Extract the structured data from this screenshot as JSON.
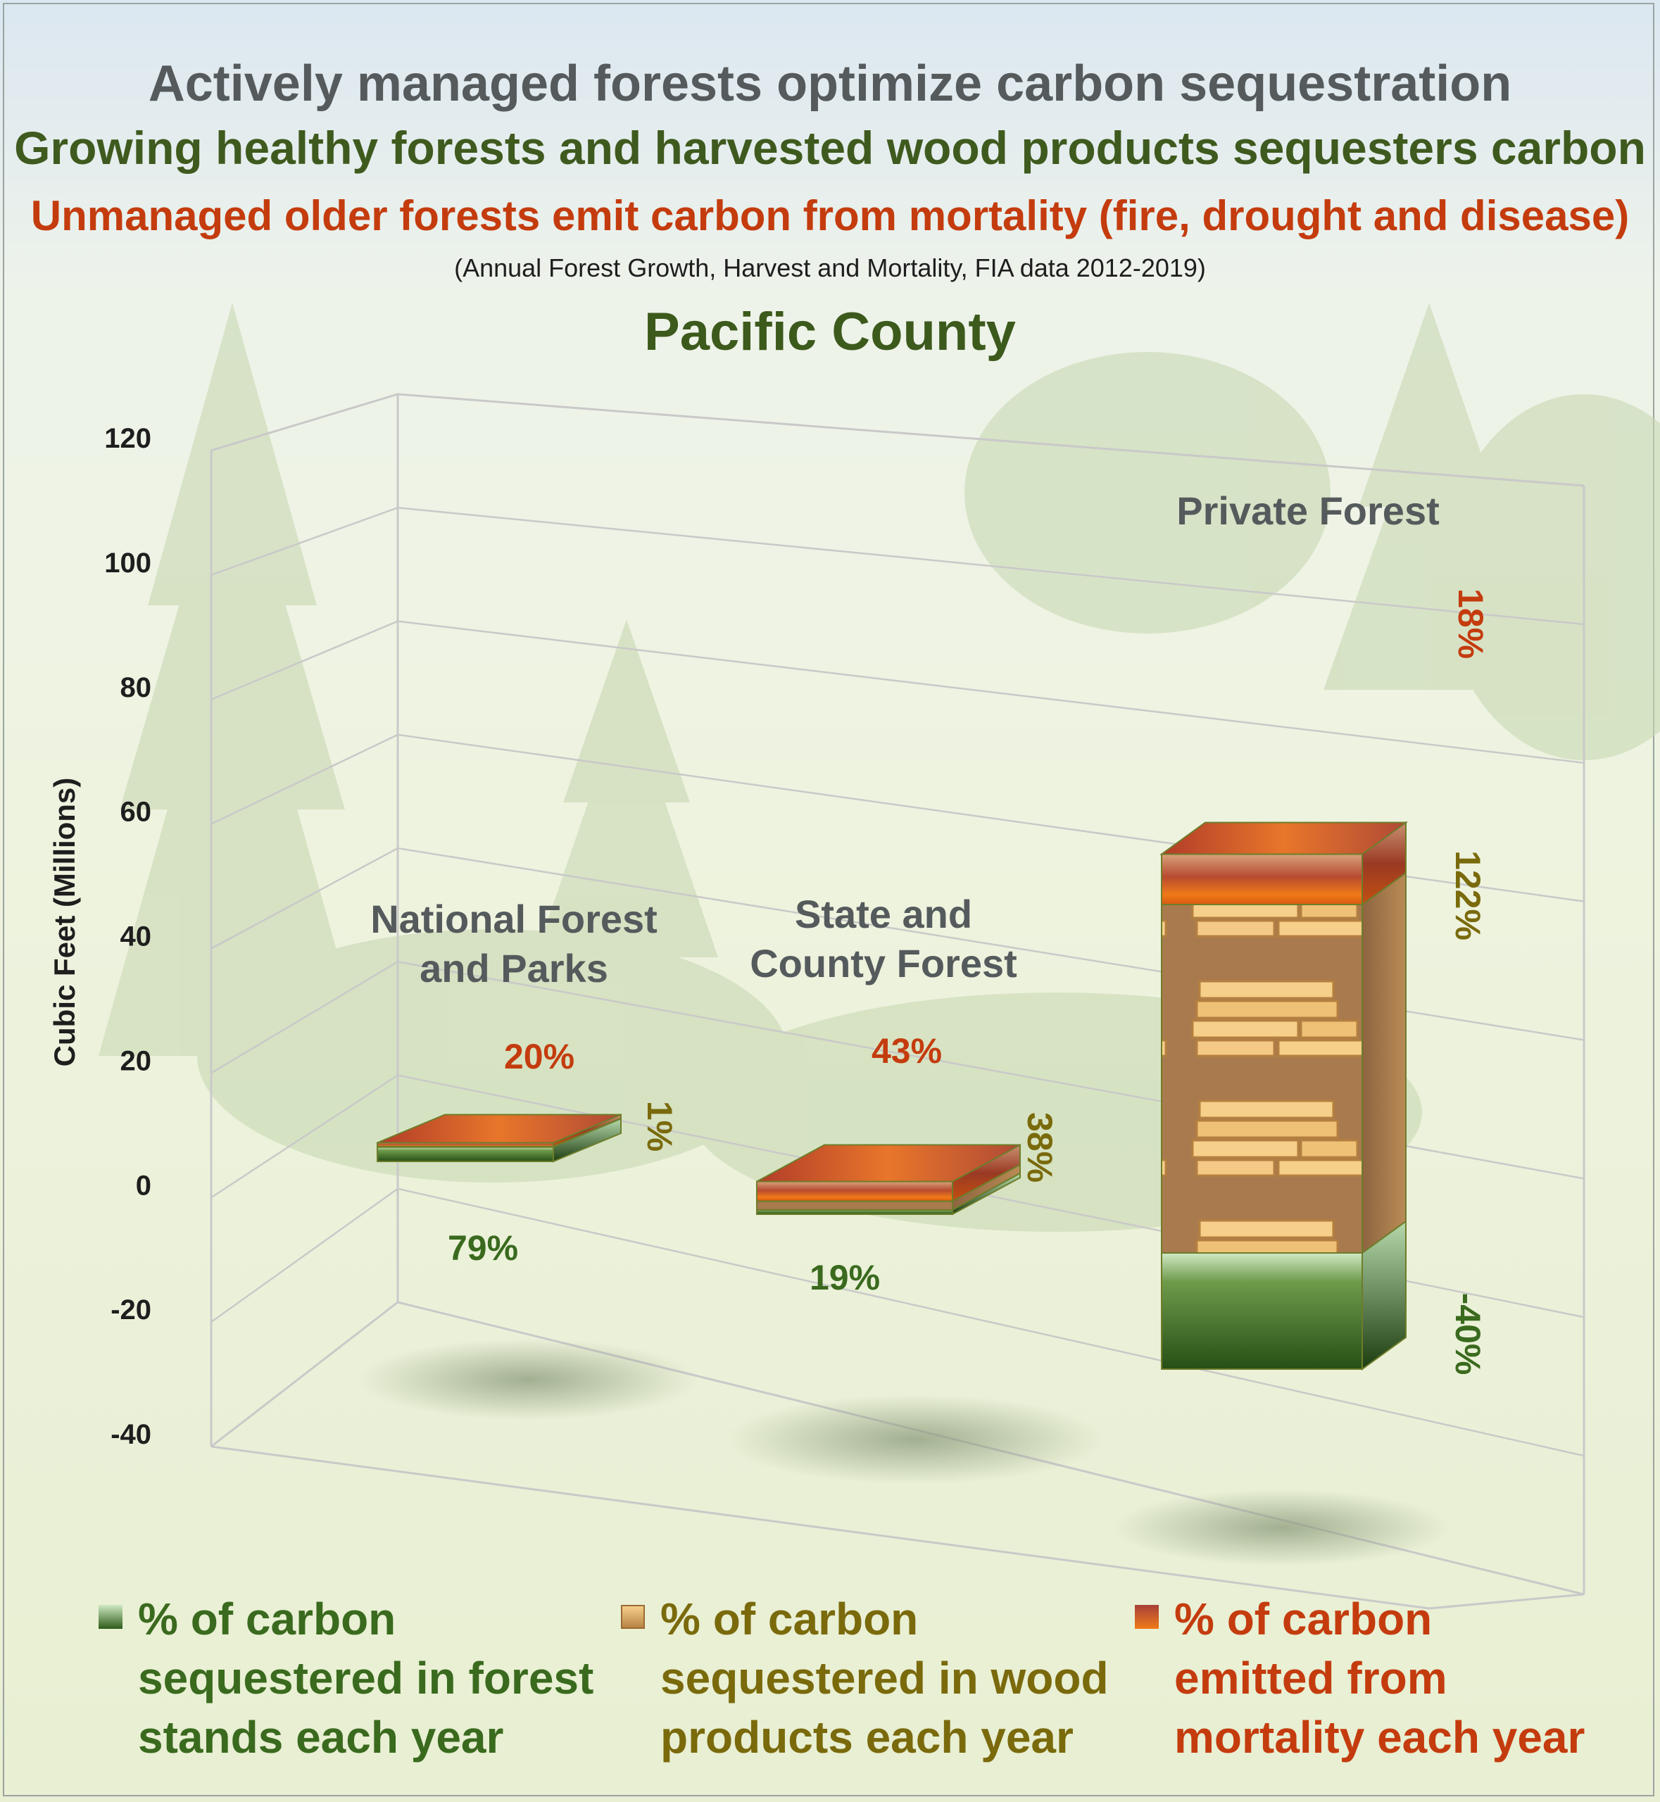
{
  "titles": {
    "main": "Actively managed forests optimize carbon sequestration",
    "line2": "Growing healthy forests and harvested wood products sequesters carbon",
    "line3": "Unmanaged older forests emit carbon from mortality (fire, drought and disease)",
    "source": "(Annual Forest Growth, Harvest and Mortality, FIA data 2012-2019)",
    "region": "Pacific County"
  },
  "colors": {
    "forest": "#3a6a1e",
    "wood": "#7a6a0c",
    "mortality": "#c43c0e",
    "gray_text": "#555a5c"
  },
  "legend": [
    {
      "key": "forest",
      "icon": "forest-icon",
      "lines": [
        "% of carbon",
        "sequestered in forest",
        "stands each year"
      ],
      "color": "#3a6a1e"
    },
    {
      "key": "wood",
      "icon": "lumber-icon",
      "lines": [
        "% of carbon",
        "sequestered in wood",
        "products each year"
      ],
      "color": "#7a6a0c"
    },
    {
      "key": "mortality",
      "icon": "fire-icon",
      "lines": [
        "% of carbon",
        "emitted from",
        "mortality each year"
      ],
      "color": "#c43c0e"
    }
  ],
  "chart_data": {
    "type": "bar",
    "stacked": true,
    "three_d": true,
    "ylabel": "Cubic Feet (Millions)",
    "ylim": [
      -40,
      120
    ],
    "yticks": [
      -40,
      -20,
      0,
      20,
      40,
      60,
      80,
      100,
      120
    ],
    "grid": true,
    "categories": [
      {
        "label_lines": [
          "National Forest",
          "and Parks"
        ]
      },
      {
        "label_lines": [
          "State and",
          "County Forest"
        ]
      },
      {
        "label_lines": [
          "Private Forest"
        ]
      }
    ],
    "series": [
      {
        "key": "forest",
        "values": [
          4,
          1,
          -30
        ],
        "percent_labels": [
          "79%",
          "19%",
          "-40%"
        ]
      },
      {
        "key": "wood",
        "values": [
          0.1,
          2,
          90
        ],
        "percent_labels": [
          "1%",
          "38%",
          "122%"
        ]
      },
      {
        "key": "mortality",
        "values": [
          1,
          4.5,
          13
        ],
        "percent_labels": [
          "20%",
          "43%",
          "18%"
        ]
      }
    ]
  }
}
